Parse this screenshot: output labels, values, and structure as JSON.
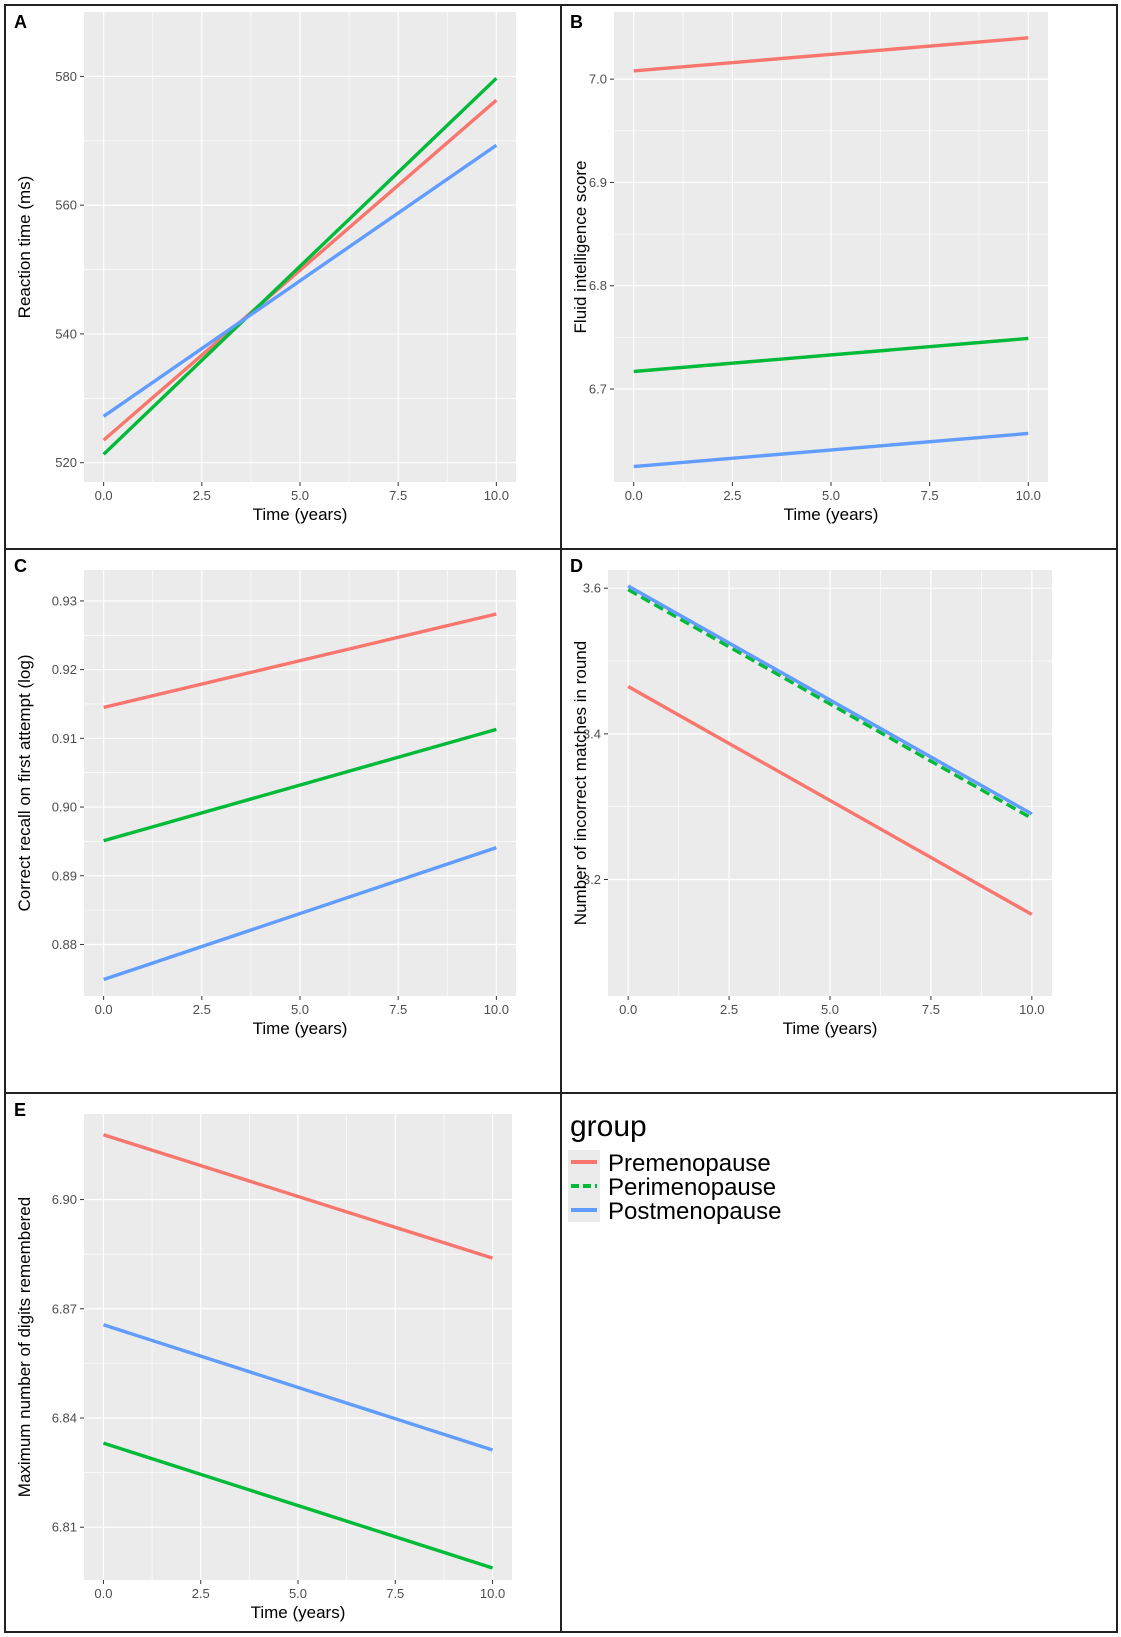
{
  "chart_data": [
    {
      "panel": "A",
      "type": "line",
      "xlabel": "Time (years)",
      "ylabel": "Reaction time (ms)",
      "xlim": [
        -0.5,
        10.5
      ],
      "ylim": [
        517,
        590
      ],
      "xticks": [
        0.0,
        2.5,
        5.0,
        7.5,
        10.0
      ],
      "xtick_labels": [
        "0.0",
        "2.5",
        "5.0",
        "7.5",
        "10.0"
      ],
      "yticks": [
        520,
        540,
        560,
        580
      ],
      "ytick_labels": [
        "520",
        "540",
        "560",
        "580"
      ],
      "series": [
        {
          "name": "Premenopause",
          "x": [
            0,
            10
          ],
          "y": [
            523.5,
            576.3
          ],
          "dashed": false
        },
        {
          "name": "Perimenopause",
          "x": [
            0,
            10
          ],
          "y": [
            521.3,
            579.7
          ],
          "dashed": false
        },
        {
          "name": "Postmenopause",
          "x": [
            0,
            10
          ],
          "y": [
            527.2,
            569.3
          ],
          "dashed": false
        }
      ]
    },
    {
      "panel": "B",
      "type": "line",
      "xlabel": "Time (years)",
      "ylabel": "Fluid intelligence score",
      "xlim": [
        -0.5,
        10.5
      ],
      "ylim": [
        6.61,
        7.065
      ],
      "xticks": [
        0.0,
        2.5,
        5.0,
        7.5,
        10.0
      ],
      "xtick_labels": [
        "0.0",
        "2.5",
        "5.0",
        "7.5",
        "10.0"
      ],
      "yticks": [
        6.7,
        6.8,
        6.9,
        7.0
      ],
      "ytick_labels": [
        "6.7",
        "6.8",
        "6.9",
        "7.0"
      ],
      "series": [
        {
          "name": "Premenopause",
          "x": [
            0,
            10
          ],
          "y": [
            7.008,
            7.04
          ],
          "dashed": false
        },
        {
          "name": "Perimenopause",
          "x": [
            0,
            10
          ],
          "y": [
            6.717,
            6.749
          ],
          "dashed": false
        },
        {
          "name": "Postmenopause",
          "x": [
            0,
            10
          ],
          "y": [
            6.625,
            6.657
          ],
          "dashed": false
        }
      ]
    },
    {
      "panel": "C",
      "type": "line",
      "xlabel": "Time (years)",
      "ylabel": "Correct recall on first attempt (log)",
      "xlim": [
        -0.5,
        10.5
      ],
      "ylim": [
        0.8725,
        0.9345
      ],
      "xticks": [
        0.0,
        2.5,
        5.0,
        7.5,
        10.0
      ],
      "xtick_labels": [
        "0.0",
        "2.5",
        "5.0",
        "7.5",
        "10.0"
      ],
      "yticks": [
        0.88,
        0.89,
        0.9,
        0.91,
        0.92,
        0.93
      ],
      "ytick_labels": [
        "0.88",
        "0.89",
        "0.90",
        "0.91",
        "0.92",
        "0.93"
      ],
      "series": [
        {
          "name": "Premenopause",
          "x": [
            0,
            10
          ],
          "y": [
            0.9145,
            0.9281
          ],
          "dashed": false
        },
        {
          "name": "Perimenopause",
          "x": [
            0,
            10
          ],
          "y": [
            0.8951,
            0.9113
          ],
          "dashed": false
        },
        {
          "name": "Postmenopause",
          "x": [
            0,
            10
          ],
          "y": [
            0.8749,
            0.8941
          ],
          "dashed": false
        }
      ]
    },
    {
      "panel": "D",
      "type": "line",
      "xlabel": "Time (years)",
      "ylabel": "Number of incorrect matches in round",
      "xlim": [
        -0.5,
        10.5
      ],
      "ylim": [
        3.04,
        3.625
      ],
      "xticks": [
        0.0,
        2.5,
        5.0,
        7.5,
        10.0
      ],
      "xtick_labels": [
        "0.0",
        "2.5",
        "5.0",
        "7.5",
        "10.0"
      ],
      "yticks": [
        3.2,
        3.4,
        3.6
      ],
      "ytick_labels": [
        "3.2",
        "3.4",
        "3.6"
      ],
      "series": [
        {
          "name": "Premenopause",
          "x": [
            0,
            10
          ],
          "y": [
            3.465,
            3.152
          ],
          "dashed": false
        },
        {
          "name": "Perimenopause",
          "x": [
            0,
            10
          ],
          "y": [
            3.598,
            3.284
          ],
          "dashed": true
        },
        {
          "name": "Postmenopause",
          "x": [
            0,
            10
          ],
          "y": [
            3.603,
            3.29
          ],
          "dashed": false
        }
      ]
    },
    {
      "panel": "E",
      "type": "line",
      "xlabel": "Time (years)",
      "ylabel": "Maximum number of digits remembered",
      "xlim": [
        -0.5,
        10.5
      ],
      "ylim": [
        6.7955,
        6.9235
      ],
      "xticks": [
        0.0,
        2.5,
        5.0,
        7.5,
        10.0
      ],
      "xtick_labels": [
        "0.0",
        "2.5",
        "5.0",
        "7.5",
        "10.0"
      ],
      "yticks": [
        6.81,
        6.84,
        6.87,
        6.9
      ],
      "ytick_labels": [
        "6.81",
        "6.84",
        "6.87",
        "6.90"
      ],
      "series": [
        {
          "name": "Premenopause",
          "x": [
            0,
            10
          ],
          "y": [
            6.9178,
            6.8839
          ],
          "dashed": false
        },
        {
          "name": "Perimenopause",
          "x": [
            0,
            10
          ],
          "y": [
            6.8331,
            6.7988
          ],
          "dashed": false
        },
        {
          "name": "Postmenopause",
          "x": [
            0,
            10
          ],
          "y": [
            6.8656,
            6.8312
          ],
          "dashed": false
        }
      ]
    }
  ],
  "legend": {
    "title": "group",
    "items": [
      {
        "label": "Premenopause",
        "color": "#F8766D",
        "dashed": false
      },
      {
        "label": "Perimenopause",
        "color": "#00BA38",
        "dashed": true
      },
      {
        "label": "Postmenopause",
        "color": "#619CFF",
        "dashed": false
      }
    ]
  },
  "colors": {
    "Premenopause": "#F8766D",
    "Perimenopause": "#00BA38",
    "Postmenopause": "#619CFF",
    "panel_background": "#EBEBEB",
    "grid": "#FFFFFF"
  }
}
